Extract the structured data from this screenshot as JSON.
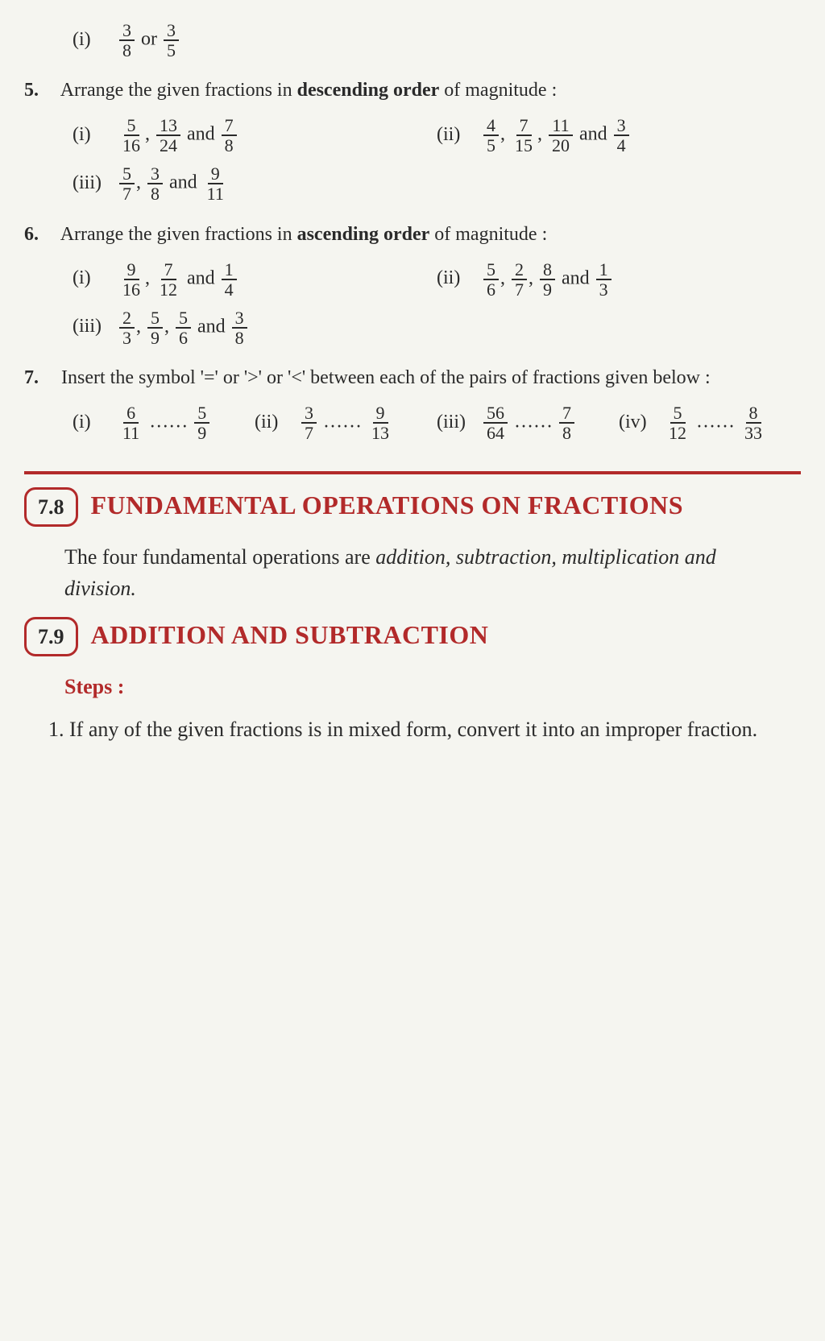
{
  "colors": {
    "accent": "#b22a2a",
    "text": "#2a2a2a",
    "bg": "#f5f5f0"
  },
  "q0_opt": {
    "label": "(i)",
    "f1": {
      "n": "3",
      "d": "8"
    },
    "word_or": "or",
    "f2": {
      "n": "3",
      "d": "5"
    }
  },
  "q5": {
    "num": "5.",
    "text": "Arrange the given fractions in descending order of magnitude :",
    "opts": [
      {
        "label": "(i)",
        "fracs": [
          {
            "n": "5",
            "d": "16"
          },
          {
            "n": "13",
            "d": "24"
          },
          {
            "n": "7",
            "d": "8"
          }
        ],
        "seps": [
          ", ",
          " and "
        ]
      },
      {
        "label": "(ii)",
        "fracs": [
          {
            "n": "4",
            "d": "5"
          },
          {
            "n": "7",
            "d": "15"
          },
          {
            "n": "11",
            "d": "20"
          },
          {
            "n": "3",
            "d": "4"
          }
        ],
        "seps": [
          ", ",
          ", ",
          " and "
        ]
      },
      {
        "label": "(iii)",
        "fracs": [
          {
            "n": "5",
            "d": "7"
          },
          {
            "n": "3",
            "d": "8"
          },
          {
            "n": "9",
            "d": "11"
          }
        ],
        "seps": [
          ", ",
          " and "
        ]
      }
    ]
  },
  "q6": {
    "num": "6.",
    "text": "Arrange the given fractions in ascending order of magnitude :",
    "opts": [
      {
        "label": "(i)",
        "fracs": [
          {
            "n": "9",
            "d": "16"
          },
          {
            "n": "7",
            "d": "12"
          },
          {
            "n": "1",
            "d": "4"
          }
        ],
        "seps": [
          ", ",
          " and "
        ]
      },
      {
        "label": "(ii)",
        "fracs": [
          {
            "n": "5",
            "d": "6"
          },
          {
            "n": "2",
            "d": "7"
          },
          {
            "n": "8",
            "d": "9"
          },
          {
            "n": "1",
            "d": "3"
          }
        ],
        "seps": [
          ", ",
          ", ",
          " and "
        ]
      },
      {
        "label": "(iii)",
        "fracs": [
          {
            "n": "2",
            "d": "3"
          },
          {
            "n": "5",
            "d": "9"
          },
          {
            "n": "5",
            "d": "6"
          },
          {
            "n": "3",
            "d": "8"
          }
        ],
        "seps": [
          ", ",
          ", ",
          " and "
        ]
      }
    ]
  },
  "q7": {
    "num": "7.",
    "text": "Insert the symbol '=' or '>' or '<' between each of the pairs of fractions given below :",
    "opts": [
      {
        "label": "(i)",
        "f1": {
          "n": "6",
          "d": "11"
        },
        "dots": "……",
        "f2": {
          "n": "5",
          "d": "9"
        }
      },
      {
        "label": "(ii)",
        "f1": {
          "n": "3",
          "d": "7"
        },
        "dots": "……",
        "f2": {
          "n": "9",
          "d": "13"
        }
      },
      {
        "label": "(iii)",
        "f1": {
          "n": "56",
          "d": "64"
        },
        "dots": "……",
        "f2": {
          "n": "7",
          "d": "8"
        }
      },
      {
        "label": "(iv)",
        "f1": {
          "n": "5",
          "d": "12"
        },
        "dots": "……",
        "f2": {
          "n": "8",
          "d": "33"
        }
      }
    ]
  },
  "sec78": {
    "badge": "7.8",
    "title": "FUNDAMENTAL OPERATIONS ON FRACTIONS",
    "intro_a": "The four fundamental operations are ",
    "intro_ops": "addition, subtraction, multiplication and division.",
    "intro_b": ""
  },
  "sec79": {
    "badge": "7.9",
    "title": "ADDITION AND SUBTRACTION",
    "steps_label": "Steps :",
    "step1_num": "1.",
    "step1_text": "If any of the given fractions is in mixed form, convert it into an improper fraction."
  }
}
